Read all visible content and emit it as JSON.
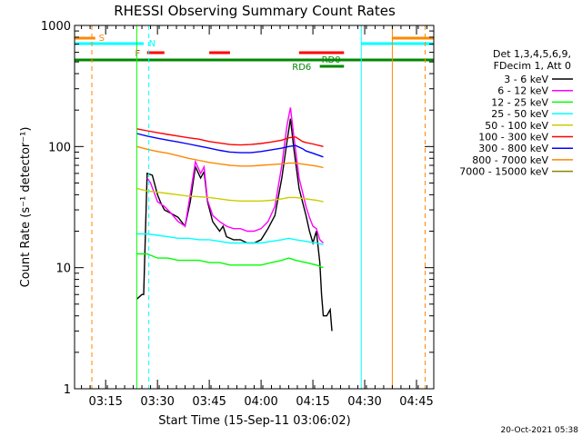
{
  "chart_data": {
    "type": "line",
    "title": "RHESSI Observing Summary Count Rates",
    "ylabel": "Count Rate (s⁻¹ detector⁻¹)",
    "xlabel": "Start Time (15-Sep-11 03:06:02)",
    "yscale": "log",
    "ylim": [
      1,
      1000
    ],
    "xlim_minutes": [
      0,
      104
    ],
    "x_tick_labels": [
      {
        "label": "03:15",
        "minute": 9
      },
      {
        "label": "03:30",
        "minute": 24
      },
      {
        "label": "03:45",
        "minute": 39
      },
      {
        "label": "04:00",
        "minute": 54
      },
      {
        "label": "04:15",
        "minute": 69
      },
      {
        "label": "04:30",
        "minute": 84
      },
      {
        "label": "04:45",
        "minute": 99
      }
    ],
    "y_tick_labels": [
      "1",
      "10",
      "100",
      "1000"
    ],
    "legend_header": [
      "Det 1,3,4,5,6,9,",
      "FDecim 1, Att 0"
    ],
    "legend_placement": "right",
    "footer_date": "20-Oct-2021 05:38",
    "flag_labels": {
      "saa": "S",
      "night": "N",
      "flare": "F",
      "rd0": "RD0",
      "rd6": "RD6"
    },
    "series": [
      {
        "name": "3 - 6 keV",
        "color": "#000000",
        "points": [
          [
            18,
            5.5
          ],
          [
            19.5,
            6
          ],
          [
            20,
            6
          ],
          [
            21,
            60
          ],
          [
            22.5,
            58
          ],
          [
            24,
            40
          ],
          [
            25,
            34
          ],
          [
            26,
            30
          ],
          [
            28,
            28
          ],
          [
            30,
            26
          ],
          [
            32,
            22
          ],
          [
            33.5,
            35
          ],
          [
            35,
            68
          ],
          [
            36.5,
            55
          ],
          [
            37.5,
            62
          ],
          [
            38.5,
            35
          ],
          [
            40,
            24
          ],
          [
            42,
            20
          ],
          [
            43,
            22
          ],
          [
            44,
            18
          ],
          [
            46,
            17
          ],
          [
            48,
            17
          ],
          [
            50,
            16
          ],
          [
            52,
            16
          ],
          [
            54,
            17
          ],
          [
            56,
            21
          ],
          [
            58,
            27
          ],
          [
            60,
            55
          ],
          [
            61.5,
            110
          ],
          [
            62.5,
            170
          ],
          [
            63.5,
            95
          ],
          [
            65,
            45
          ],
          [
            67,
            27
          ],
          [
            68,
            20
          ],
          [
            69,
            16
          ],
          [
            70,
            20
          ],
          [
            71,
            11
          ],
          [
            71.5,
            6
          ],
          [
            72,
            4
          ],
          [
            73,
            4
          ],
          [
            74,
            4.5
          ],
          [
            74.5,
            3
          ]
        ]
      },
      {
        "name": "6 - 12 keV",
        "color": "#ff00ff",
        "points": [
          [
            21,
            55
          ],
          [
            22,
            50
          ],
          [
            24,
            35
          ],
          [
            26,
            32
          ],
          [
            28,
            28
          ],
          [
            30,
            24
          ],
          [
            32,
            22
          ],
          [
            33.5,
            40
          ],
          [
            35,
            75
          ],
          [
            36.5,
            60
          ],
          [
            37.5,
            68
          ],
          [
            38.5,
            36
          ],
          [
            40,
            27
          ],
          [
            42,
            24
          ],
          [
            44,
            22
          ],
          [
            46,
            21
          ],
          [
            48,
            21
          ],
          [
            50,
            20
          ],
          [
            52,
            20
          ],
          [
            54,
            21
          ],
          [
            56,
            24
          ],
          [
            58,
            32
          ],
          [
            60,
            70
          ],
          [
            61.5,
            150
          ],
          [
            62.5,
            210
          ],
          [
            63.5,
            120
          ],
          [
            65,
            55
          ],
          [
            67,
            32
          ],
          [
            68,
            26
          ],
          [
            69,
            22
          ],
          [
            70,
            21
          ],
          [
            71,
            17
          ],
          [
            72,
            16
          ]
        ]
      },
      {
        "name": "12 - 25 keV",
        "color": "#00ff00",
        "points": [
          [
            18,
            13
          ],
          [
            21,
            13
          ],
          [
            24,
            12
          ],
          [
            27,
            12
          ],
          [
            30,
            11.5
          ],
          [
            33,
            11.5
          ],
          [
            36,
            11.5
          ],
          [
            39,
            11
          ],
          [
            42,
            11
          ],
          [
            45,
            10.5
          ],
          [
            48,
            10.5
          ],
          [
            51,
            10.5
          ],
          [
            54,
            10.5
          ],
          [
            57,
            11
          ],
          [
            60,
            11.5
          ],
          [
            62,
            12
          ],
          [
            64,
            11.5
          ],
          [
            67,
            11
          ],
          [
            70,
            10.5
          ],
          [
            72,
            10
          ]
        ]
      },
      {
        "name": "25 - 50 keV",
        "color": "#00ffff",
        "points": [
          [
            18,
            19
          ],
          [
            21,
            19
          ],
          [
            24,
            18.5
          ],
          [
            27,
            18
          ],
          [
            30,
            17.5
          ],
          [
            33,
            17.5
          ],
          [
            36,
            17
          ],
          [
            39,
            17
          ],
          [
            42,
            16.5
          ],
          [
            45,
            16
          ],
          [
            48,
            16
          ],
          [
            51,
            16
          ],
          [
            54,
            16
          ],
          [
            57,
            16.5
          ],
          [
            60,
            17
          ],
          [
            62,
            17.5
          ],
          [
            64,
            17
          ],
          [
            67,
            16.5
          ],
          [
            70,
            16
          ],
          [
            72,
            15.5
          ]
        ]
      },
      {
        "name": "50 - 100 keV",
        "color": "#cccc00",
        "points": [
          [
            18,
            45
          ],
          [
            21,
            43
          ],
          [
            24,
            42
          ],
          [
            27,
            41
          ],
          [
            30,
            40
          ],
          [
            33,
            39
          ],
          [
            36,
            38.5
          ],
          [
            39,
            38
          ],
          [
            42,
            37
          ],
          [
            45,
            36
          ],
          [
            48,
            35.5
          ],
          [
            51,
            35.5
          ],
          [
            54,
            35.5
          ],
          [
            57,
            36
          ],
          [
            60,
            37
          ],
          [
            62,
            38
          ],
          [
            64,
            38
          ],
          [
            67,
            37
          ],
          [
            70,
            36
          ],
          [
            72,
            35
          ]
        ]
      },
      {
        "name": "100 - 300 keV",
        "color": "#ff0000",
        "points": [
          [
            18,
            140
          ],
          [
            21,
            135
          ],
          [
            24,
            130
          ],
          [
            27,
            126
          ],
          [
            30,
            122
          ],
          [
            33,
            118
          ],
          [
            36,
            115
          ],
          [
            39,
            110
          ],
          [
            42,
            107
          ],
          [
            45,
            104
          ],
          [
            48,
            103
          ],
          [
            51,
            104
          ],
          [
            54,
            106
          ],
          [
            57,
            109
          ],
          [
            60,
            113
          ],
          [
            62,
            118
          ],
          [
            64,
            120
          ],
          [
            66,
            110
          ],
          [
            67,
            108
          ],
          [
            69,
            105
          ],
          [
            72,
            100
          ]
        ]
      },
      {
        "name": "300 - 800 keV",
        "color": "#0000ff",
        "points": [
          [
            18,
            128
          ],
          [
            21,
            122
          ],
          [
            24,
            117
          ],
          [
            27,
            113
          ],
          [
            30,
            109
          ],
          [
            33,
            105
          ],
          [
            36,
            101
          ],
          [
            39,
            97
          ],
          [
            42,
            93
          ],
          [
            45,
            90
          ],
          [
            48,
            89
          ],
          [
            51,
            89
          ],
          [
            54,
            91
          ],
          [
            57,
            94
          ],
          [
            60,
            97
          ],
          [
            62,
            100
          ],
          [
            64,
            102
          ],
          [
            66,
            96
          ],
          [
            67,
            92
          ],
          [
            69,
            88
          ],
          [
            72,
            82
          ]
        ]
      },
      {
        "name": "800 - 7000 keV",
        "color": "#ff8800",
        "points": [
          [
            18,
            100
          ],
          [
            21,
            95
          ],
          [
            24,
            91
          ],
          [
            27,
            88
          ],
          [
            30,
            84
          ],
          [
            33,
            80
          ],
          [
            36,
            77
          ],
          [
            39,
            74
          ],
          [
            42,
            72
          ],
          [
            45,
            70
          ],
          [
            48,
            69
          ],
          [
            51,
            69
          ],
          [
            54,
            70
          ],
          [
            57,
            71
          ],
          [
            60,
            72
          ],
          [
            62,
            73
          ],
          [
            64,
            73
          ],
          [
            67,
            71
          ],
          [
            70,
            69
          ],
          [
            72,
            67
          ]
        ]
      },
      {
        "name": "7000 - 15000 keV",
        "color": "#888800",
        "points": []
      }
    ]
  }
}
